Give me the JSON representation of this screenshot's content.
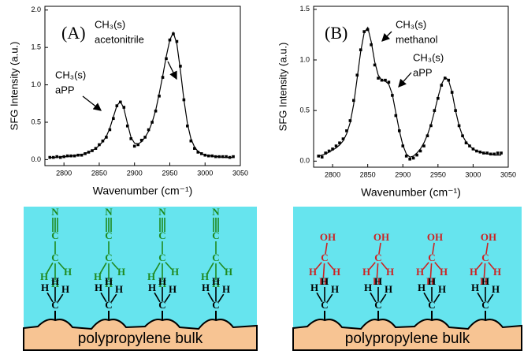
{
  "chart_data": [
    {
      "type": "scatter",
      "xlabel": "Wavenumber (cm⁻¹)",
      "ylabel": "SFG Intensity (a.u.)",
      "annotations": [
        "(A)",
        "CH₃(s)",
        "acetonitrile",
        "CH₃(s)",
        "aPP"
      ],
      "x": [
        2780,
        2785,
        2790,
        2795,
        2800,
        2805,
        2810,
        2815,
        2820,
        2825,
        2830,
        2835,
        2840,
        2845,
        2850,
        2855,
        2860,
        2865,
        2870,
        2875,
        2880,
        2885,
        2890,
        2895,
        2900,
        2905,
        2910,
        2915,
        2920,
        2925,
        2930,
        2935,
        2940,
        2945,
        2950,
        2955,
        2960,
        2965,
        2970,
        2975,
        2980,
        2985,
        2990,
        2995,
        3000,
        3005,
        3010,
        3015,
        3020,
        3025,
        3030,
        3035,
        3040
      ],
      "series": [
        {
          "style": "markers",
          "color": "#000000",
          "values": [
            0.03,
            0.03,
            0.04,
            0.03,
            0.04,
            0.05,
            0.05,
            0.05,
            0.06,
            0.06,
            0.08,
            0.1,
            0.12,
            0.15,
            0.2,
            0.25,
            0.3,
            0.4,
            0.55,
            0.72,
            0.77,
            0.7,
            0.45,
            0.28,
            0.18,
            0.2,
            0.26,
            0.3,
            0.4,
            0.5,
            0.65,
            0.85,
            1.1,
            1.35,
            1.6,
            1.68,
            1.58,
            1.25,
            0.8,
            0.45,
            0.25,
            0.15,
            0.1,
            0.08,
            0.06,
            0.05,
            0.05,
            0.04,
            0.04,
            0.04,
            0.04,
            0.03,
            0.04
          ]
        },
        {
          "style": "line",
          "color": "#000000",
          "values": [
            0.03,
            0.03,
            0.03,
            0.04,
            0.04,
            0.04,
            0.05,
            0.05,
            0.06,
            0.07,
            0.08,
            0.1,
            0.12,
            0.15,
            0.19,
            0.24,
            0.31,
            0.42,
            0.57,
            0.72,
            0.78,
            0.68,
            0.48,
            0.3,
            0.22,
            0.21,
            0.24,
            0.3,
            0.38,
            0.5,
            0.66,
            0.88,
            1.12,
            1.38,
            1.6,
            1.7,
            1.55,
            1.2,
            0.8,
            0.48,
            0.28,
            0.17,
            0.11,
            0.08,
            0.06,
            0.05,
            0.05,
            0.04,
            0.04,
            0.03,
            0.03,
            0.03,
            0.03
          ]
        }
      ],
      "xlim": [
        2773,
        3050
      ],
      "xticks": [
        2800,
        2850,
        2900,
        2950,
        3000,
        3050
      ],
      "ylim": [
        -0.08,
        2.05
      ],
      "yticks": [
        {
          "value": 0,
          "label": "0.0"
        },
        0.5,
        {
          "value": 1,
          "label": "1.0"
        },
        1.5,
        {
          "value": 2,
          "label": "2.0"
        }
      ]
    },
    {
      "type": "scatter",
      "xlabel": "Wavenumber (cm⁻¹)",
      "ylabel": "SFG Intensity (a.u.)",
      "annotations": [
        "(B)",
        "CH₃(s)",
        "methanol",
        "CH₃(s)",
        "aPP"
      ],
      "x": [
        2780,
        2785,
        2790,
        2795,
        2800,
        2805,
        2810,
        2815,
        2820,
        2825,
        2830,
        2835,
        2840,
        2845,
        2850,
        2855,
        2860,
        2865,
        2870,
        2875,
        2880,
        2885,
        2890,
        2895,
        2900,
        2905,
        2910,
        2915,
        2920,
        2925,
        2930,
        2935,
        2940,
        2945,
        2950,
        2955,
        2960,
        2965,
        2970,
        2975,
        2980,
        2985,
        2990,
        2995,
        3000,
        3005,
        3010,
        3015,
        3020,
        3025,
        3030,
        3035,
        3040
      ],
      "series": [
        {
          "style": "markers",
          "color": "#000000",
          "values": [
            0.05,
            0.04,
            0.08,
            0.1,
            0.12,
            0.15,
            0.18,
            0.22,
            0.3,
            0.4,
            0.6,
            0.85,
            1.1,
            1.28,
            1.3,
            1.15,
            0.95,
            0.82,
            0.8,
            0.8,
            0.78,
            0.65,
            0.45,
            0.3,
            0.15,
            0.05,
            0.02,
            0.03,
            0.06,
            0.1,
            0.15,
            0.25,
            0.35,
            0.5,
            0.62,
            0.75,
            0.82,
            0.8,
            0.68,
            0.5,
            0.35,
            0.25,
            0.18,
            0.15,
            0.12,
            0.1,
            0.09,
            0.08,
            0.08,
            0.07,
            0.07,
            0.08,
            0.08
          ]
        },
        {
          "style": "line",
          "color": "#000000",
          "values": [
            0.05,
            0.06,
            0.07,
            0.09,
            0.11,
            0.13,
            0.16,
            0.2,
            0.27,
            0.38,
            0.56,
            0.82,
            1.08,
            1.27,
            1.32,
            1.18,
            0.98,
            0.85,
            0.8,
            0.79,
            0.76,
            0.66,
            0.48,
            0.3,
            0.16,
            0.07,
            0.04,
            0.05,
            0.08,
            0.12,
            0.18,
            0.26,
            0.36,
            0.49,
            0.63,
            0.76,
            0.83,
            0.8,
            0.68,
            0.5,
            0.35,
            0.25,
            0.19,
            0.15,
            0.12,
            0.1,
            0.09,
            0.08,
            0.07,
            0.07,
            0.06,
            0.06,
            0.06
          ]
        }
      ],
      "xlim": [
        2773,
        3050
      ],
      "xticks": [
        2800,
        2850,
        2900,
        2950,
        3000,
        3050
      ],
      "ylim": [
        -0.06,
        1.53
      ],
      "yticks": [
        {
          "value": 0,
          "label": "0.0"
        },
        0.5,
        {
          "value": 1,
          "label": "1.0"
        },
        1.5
      ]
    }
  ],
  "diagrams": [
    {
      "bulk": "polypropylene bulk",
      "adsorbate_color": "#1f8a1f",
      "adsorbates": [
        {
          "atoms": [
            "N",
            "C",
            "C",
            "H",
            "H",
            "H"
          ]
        },
        {
          "atoms": [
            "N",
            "C",
            "C",
            "H",
            "H",
            "H"
          ]
        },
        {
          "atoms": [
            "N",
            "C",
            "C",
            "H",
            "H",
            "H"
          ]
        },
        {
          "atoms": [
            "N",
            "C",
            "C",
            "H",
            "H",
            "H"
          ]
        }
      ],
      "surface_groups": [
        {
          "atoms": [
            "H",
            "H",
            "H",
            "C"
          ]
        },
        {
          "atoms": [
            "H",
            "H",
            "H",
            "C"
          ]
        },
        {
          "atoms": [
            "H",
            "H",
            "H",
            "C"
          ]
        },
        {
          "atoms": [
            "H",
            "H",
            "H",
            "C"
          ]
        }
      ]
    },
    {
      "bulk": "polypropylene bulk",
      "adsorbate_color": "#cc2222",
      "adsorbates": [
        {
          "atoms": [
            "OH",
            "C",
            "H",
            "H",
            "H"
          ]
        },
        {
          "atoms": [
            "OH",
            "C",
            "H",
            "H",
            "H"
          ]
        },
        {
          "atoms": [
            "OH",
            "C",
            "H",
            "H",
            "H"
          ]
        },
        {
          "atoms": [
            "OH",
            "C",
            "H",
            "H",
            "H"
          ]
        }
      ],
      "surface_groups": [
        {
          "atoms": [
            "H",
            "H",
            "H",
            "C"
          ]
        },
        {
          "atoms": [
            "H",
            "H",
            "H",
            "C"
          ]
        },
        {
          "atoms": [
            "H",
            "H",
            "H",
            "C"
          ]
        },
        {
          "atoms": [
            "H",
            "H",
            "H",
            "C"
          ]
        }
      ]
    }
  ]
}
